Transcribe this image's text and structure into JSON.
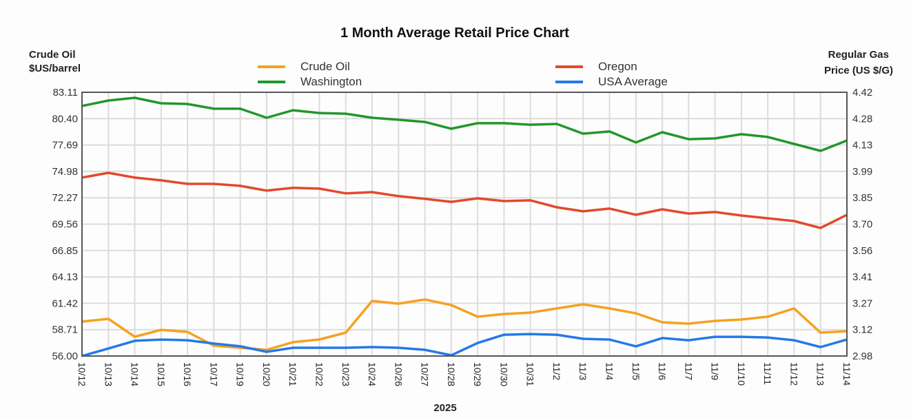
{
  "chart_data": {
    "type": "line",
    "title": "1 Month Average Retail Price Chart",
    "xlabel": "2025",
    "ylabel_left": [
      "Crude Oil",
      "$US/barrel"
    ],
    "ylabel_right": [
      "Regular Gas",
      "Price (US $/G)"
    ],
    "ylim_left": [
      56.0,
      83.11
    ],
    "ylim_right": [
      2.98,
      4.42
    ],
    "yticks_left": [
      "83.11",
      "80.40",
      "77.69",
      "74.98",
      "72.27",
      "69.56",
      "66.85",
      "64.13",
      "61.42",
      "58.71",
      "56.00"
    ],
    "yticks_right": [
      "4.42",
      "4.28",
      "4.13",
      "3.99",
      "3.85",
      "3.70",
      "3.56",
      "3.41",
      "3.27",
      "3.12",
      "2.98"
    ],
    "grid": true,
    "legend_placement": "top",
    "categories": [
      "10/12",
      "10/13",
      "10/14",
      "10/15",
      "10/16",
      "10/17",
      "10/19",
      "10/20",
      "10/21",
      "10/22",
      "10/23",
      "10/24",
      "10/26",
      "10/27",
      "10/28",
      "10/29",
      "10/30",
      "10/31",
      "11/2",
      "11/3",
      "11/4",
      "11/5",
      "11/6",
      "11/7",
      "11/9",
      "11/10",
      "11/11",
      "11/12",
      "11/13",
      "11/14"
    ],
    "series": [
      {
        "name": "Crude Oil",
        "axis": "left",
        "color": "#f7a021",
        "values": [
          59.54,
          59.82,
          57.98,
          58.69,
          58.48,
          57.06,
          56.85,
          56.64,
          57.42,
          57.7,
          58.41,
          61.66,
          61.38,
          61.81,
          61.24,
          60.04,
          60.32,
          60.46,
          60.89,
          61.31,
          60.89,
          60.39,
          59.47,
          59.33,
          59.61,
          59.75,
          60.04,
          60.89,
          58.41,
          58.55
        ]
      },
      {
        "name": "Washington",
        "axis": "right",
        "color": "#24962a",
        "values": [
          4.345,
          4.375,
          4.39,
          4.36,
          4.356,
          4.33,
          4.33,
          4.281,
          4.322,
          4.307,
          4.303,
          4.281,
          4.27,
          4.258,
          4.221,
          4.251,
          4.251,
          4.243,
          4.247,
          4.194,
          4.206,
          4.146,
          4.202,
          4.164,
          4.168,
          4.191,
          4.176,
          4.138,
          4.1,
          4.157
        ]
      },
      {
        "name": "Oregon",
        "axis": "right",
        "color": "#e2492c",
        "values": [
          3.954,
          3.98,
          3.954,
          3.939,
          3.92,
          3.92,
          3.909,
          3.883,
          3.898,
          3.894,
          3.868,
          3.875,
          3.853,
          3.838,
          3.822,
          3.841,
          3.826,
          3.83,
          3.792,
          3.77,
          3.785,
          3.751,
          3.781,
          3.758,
          3.766,
          3.747,
          3.732,
          3.717,
          3.679,
          3.751
        ]
      },
      {
        "name": "USA Average",
        "axis": "right",
        "color": "#2479e6",
        "values": [
          2.98,
          3.021,
          3.063,
          3.07,
          3.066,
          3.048,
          3.033,
          3.003,
          3.025,
          3.025,
          3.025,
          3.029,
          3.025,
          3.014,
          2.984,
          3.051,
          3.096,
          3.1,
          3.096,
          3.074,
          3.07,
          3.033,
          3.078,
          3.066,
          3.085,
          3.085,
          3.081,
          3.066,
          3.029,
          3.07
        ]
      }
    ],
    "legend": [
      {
        "label": "Crude Oil",
        "color": "#f7a021"
      },
      {
        "label": "Washington",
        "color": "#24962a"
      },
      {
        "label": "Oregon",
        "color": "#e2492c"
      },
      {
        "label": "USA Average",
        "color": "#2479e6"
      }
    ]
  }
}
